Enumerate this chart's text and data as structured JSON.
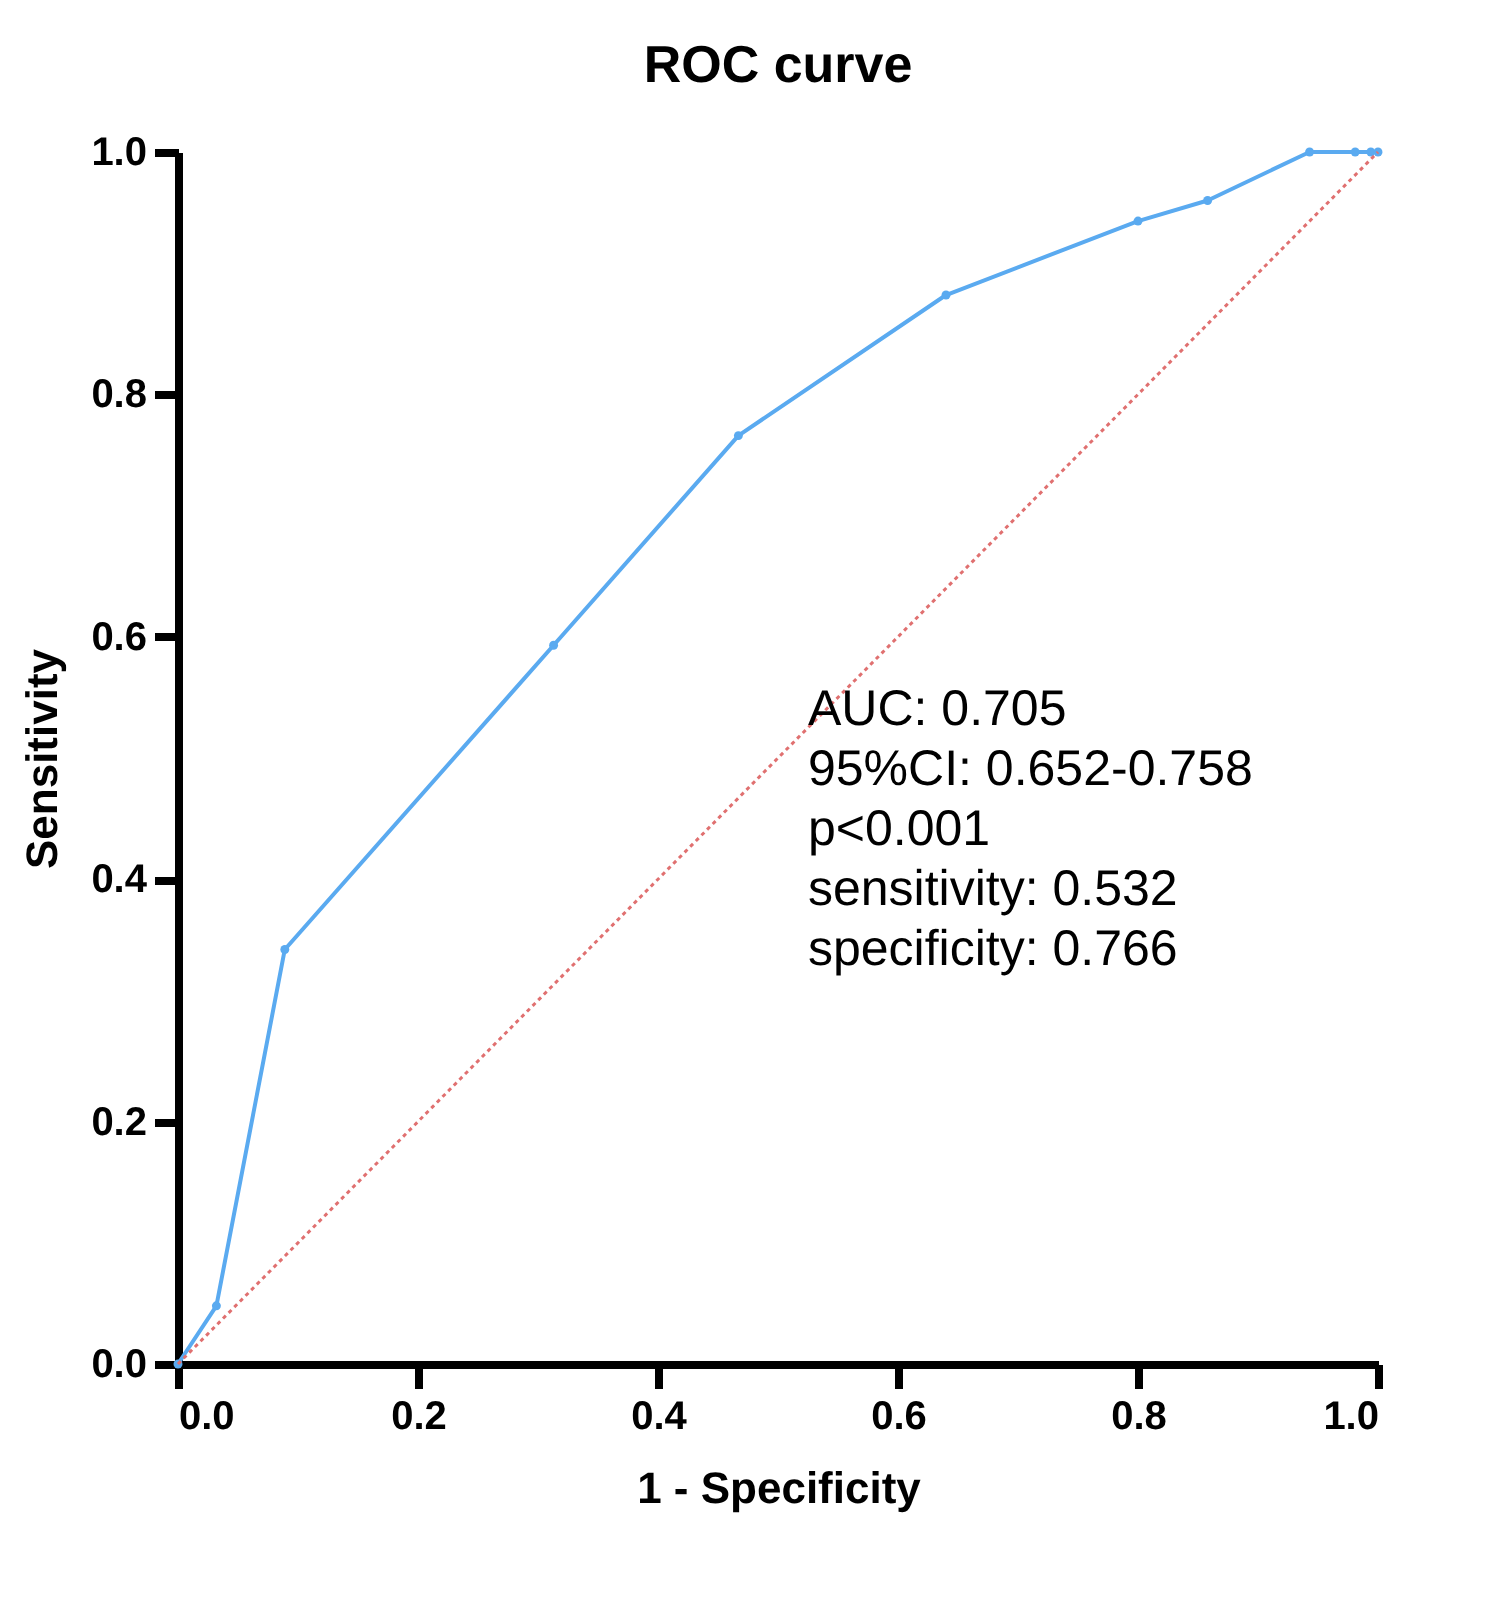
{
  "chart_data": {
    "type": "line",
    "title": "ROC curve",
    "xlabel": "1 - Specificity",
    "ylabel": "Sensitivity",
    "series": [
      {
        "type": "line",
        "color": "#5aaaf0",
        "marker": "circle",
        "line_style": "solid",
        "x": [
          0,
          0.032,
          0.089,
          0.313,
          0.467,
          0.64,
          0.8,
          0.858,
          0.943,
          0.981,
          0.994,
          1.0
        ],
        "values": [
          0,
          0.048,
          0.342,
          0.593,
          0.766,
          0.882,
          0.943,
          0.96,
          1.0,
          1.0,
          1.0,
          1.0
        ]
      },
      {
        "type": "line",
        "color": "#e07070",
        "marker": "none",
        "line_style": "dotted",
        "x": [
          0,
          1.0
        ],
        "values": [
          0,
          1.0
        ]
      }
    ],
    "xlim": [
      0,
      1.0
    ],
    "ylim": [
      0,
      1.0
    ],
    "xticks": [
      {
        "value": 0,
        "label": "0.0"
      },
      0.2,
      0.4,
      0.6,
      0.8,
      {
        "value": 1.0,
        "label": "1.0"
      }
    ],
    "yticks": [
      {
        "value": 0,
        "label": "0.0"
      },
      0.2,
      0.4,
      0.6,
      0.8,
      {
        "value": 1.0,
        "label": "1.0"
      }
    ],
    "grid": false,
    "annotations": [
      "AUC: 0.705",
      "95%CI: 0.652-0.758",
      "p<0.001",
      "sensitivity: 0.532",
      "specificity: 0.766"
    ]
  }
}
